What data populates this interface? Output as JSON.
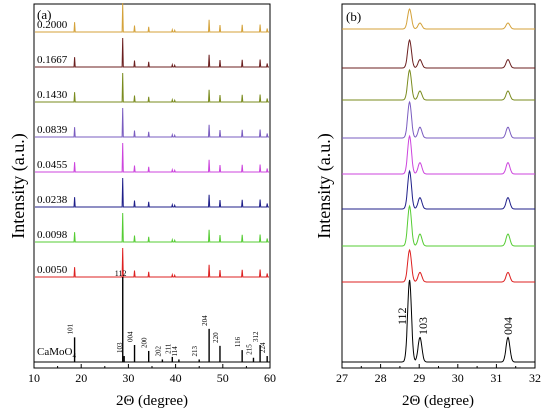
{
  "figure": {
    "panels": [
      "(a)",
      "(b)"
    ]
  },
  "chart_data": [
    {
      "type": "line",
      "panel_label": "(a)",
      "xlabel": "2Θ (degree)",
      "ylabel": "Intensity (a.u.)",
      "xlim": [
        10,
        60
      ],
      "xticks": [
        10,
        20,
        30,
        40,
        50,
        60
      ],
      "stacked": true,
      "grid": false,
      "series_labels": [
        "0.2000",
        "0.1667",
        "0.1430",
        "0.0839",
        "0.0455",
        "0.0238",
        "0.0098",
        "0.0050"
      ],
      "series_colors": [
        "#d4a23a",
        "#6b1f1f",
        "#7a8b1e",
        "#7a5cc0",
        "#cc44dd",
        "#1f1f8a",
        "#55cc33",
        "#dd2020"
      ],
      "reference": {
        "label": "CaMoO",
        "label_subscript": "4",
        "color": "#000000",
        "peaks": [
          {
            "x": 18.6,
            "h": 0.29,
            "label": "101"
          },
          {
            "x": 28.8,
            "h": 1.0,
            "label": "112"
          },
          {
            "x": 29.1,
            "h": 0.07,
            "label": "103"
          },
          {
            "x": 31.3,
            "h": 0.2,
            "label": "004"
          },
          {
            "x": 34.3,
            "h": 0.13,
            "label": "200"
          },
          {
            "x": 37.2,
            "h": 0.03,
            "label": "202"
          },
          {
            "x": 39.3,
            "h": 0.06,
            "label": "211"
          },
          {
            "x": 40.7,
            "h": 0.03,
            "label": "114"
          },
          {
            "x": 45.0,
            "h": 0.03,
            "label": "213"
          },
          {
            "x": 47.1,
            "h": 0.39,
            "label": "204"
          },
          {
            "x": 49.4,
            "h": 0.19,
            "label": "220"
          },
          {
            "x": 54.1,
            "h": 0.14,
            "label": "116"
          },
          {
            "x": 56.5,
            "h": 0.05,
            "label": "215"
          },
          {
            "x": 57.9,
            "h": 0.2,
            "label": "312"
          },
          {
            "x": 59.4,
            "h": 0.07,
            "label": "224"
          }
        ]
      },
      "sample_peaks": [
        {
          "x": 18.6,
          "h": 0.34
        },
        {
          "x": 28.8,
          "h": 1.0
        },
        {
          "x": 31.3,
          "h": 0.22
        },
        {
          "x": 34.3,
          "h": 0.18
        },
        {
          "x": 39.3,
          "h": 0.08
        },
        {
          "x": 39.8,
          "h": 0.06
        },
        {
          "x": 47.1,
          "h": 0.42
        },
        {
          "x": 49.4,
          "h": 0.24
        },
        {
          "x": 54.1,
          "h": 0.25
        },
        {
          "x": 57.9,
          "h": 0.26
        },
        {
          "x": 59.4,
          "h": 0.12
        }
      ]
    },
    {
      "type": "line",
      "panel_label": "(b)",
      "xlabel": "2Θ (degree)",
      "ylabel": "Intensity (a.u.)",
      "xlim": [
        27,
        32
      ],
      "xticks": [
        27,
        28,
        29,
        30,
        31,
        32
      ],
      "stacked": true,
      "grid": false,
      "series_colors": [
        "#d4a23a",
        "#6b1f1f",
        "#7a8b1e",
        "#7a5cc0",
        "#cc44dd",
        "#1f1f8a",
        "#55cc33",
        "#dd2020",
        "#000000"
      ],
      "peak_positions": [
        28.75,
        29.02,
        31.3
      ],
      "peak_heights": [
        1.0,
        0.3,
        0.3
      ],
      "annotations": [
        {
          "x": 28.55,
          "text": "112"
        },
        {
          "x": 29.1,
          "text": "103"
        },
        {
          "x": 31.3,
          "text": "004"
        }
      ]
    }
  ]
}
